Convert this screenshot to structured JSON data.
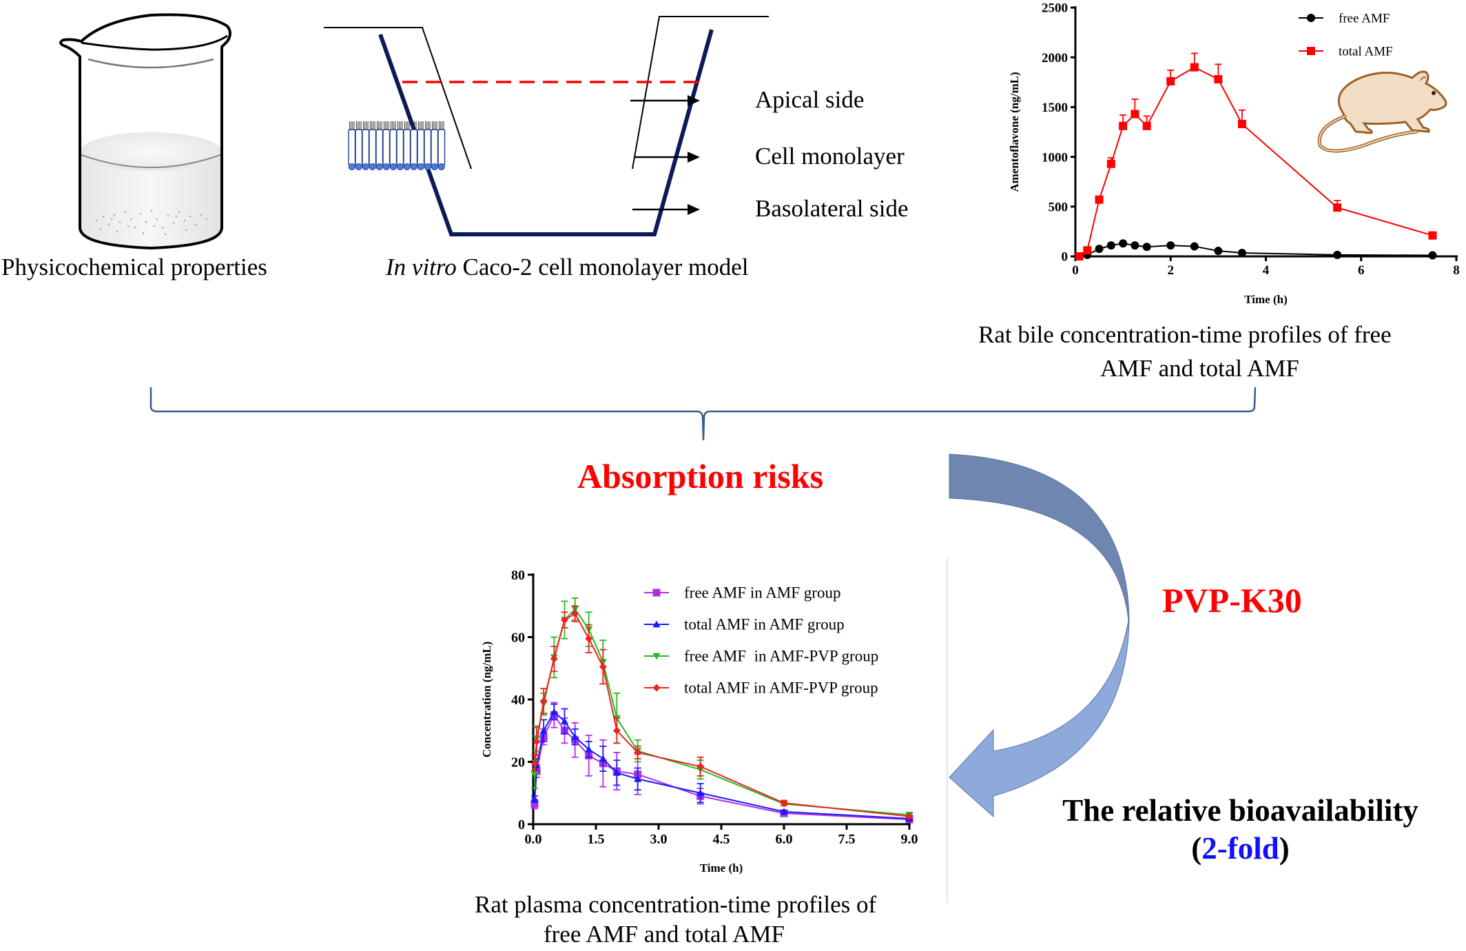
{
  "captions": {
    "beaker": "Physicochemical properties",
    "caco2_italic": "In vitro",
    "caco2_rest": " Caco-2 cell monolayer model",
    "bile_line1": "Rat bile concentration-time profiles of free",
    "bile_line2": "AMF and total AMF",
    "plasma_line1": "Rat plasma concentration-time profiles of",
    "plasma_line2": "free AMF and total AMF"
  },
  "caco2_labels": {
    "apical": "Apical side",
    "monolayer": "Cell monolayer",
    "basolateral": "Basolateral side"
  },
  "headline": {
    "absorption": "Absorption risks",
    "pvp": "PVP-K30",
    "bioavailability": "The relative bioavailability",
    "fold_open": "(",
    "fold_value": "2-fold",
    "fold_close": ")"
  },
  "colors": {
    "red": "#ff0000",
    "blue_text": "#1010ff",
    "arrow_dark": "#6e86b0",
    "arrow_light": "#8eaadc",
    "brace": "#3a5a8c",
    "navy": "#0d1a5a"
  },
  "chart_data": [
    {
      "type": "line",
      "title": "",
      "xlabel": "Time (h)",
      "ylabel": "Amentoflavone (ng/mL)",
      "xlim": [
        0,
        8
      ],
      "ylim": [
        0,
        2500
      ],
      "xticks": [
        0,
        2,
        4,
        6,
        8
      ],
      "yticks": [
        0,
        500,
        1000,
        1500,
        2000,
        2500
      ],
      "legend_position": "top-right",
      "x": [
        0.083,
        0.25,
        0.5,
        0.75,
        1,
        1.25,
        1.5,
        2,
        2.5,
        3,
        3.5,
        5.5,
        7.5
      ],
      "series": [
        {
          "name": "free AMF",
          "color": "#000000",
          "marker": "circle",
          "values": [
            0,
            15,
            75,
            110,
            130,
            110,
            95,
            110,
            100,
            55,
            35,
            15,
            10
          ],
          "errors": [
            0,
            0,
            0,
            0,
            0,
            0,
            0,
            0,
            0,
            0,
            0,
            0,
            0
          ]
        },
        {
          "name": "total AMF",
          "color": "#ff0000",
          "marker": "square",
          "values": [
            0,
            60,
            570,
            930,
            1310,
            1430,
            1310,
            1760,
            1900,
            1780,
            1330,
            490,
            210
          ],
          "errors": [
            0,
            0,
            0,
            60,
            110,
            150,
            100,
            110,
            140,
            150,
            140,
            70,
            0
          ]
        }
      ]
    },
    {
      "type": "line",
      "title": "",
      "xlabel": "Time (h)",
      "ylabel": "Concentration (ng/mL)",
      "xlim": [
        0,
        9
      ],
      "ylim": [
        0,
        80
      ],
      "xticks": [
        "0.0",
        "1.5",
        "3.0",
        "4.5",
        "6.0",
        "7.5",
        "9.0"
      ],
      "yticks": [
        0,
        20,
        40,
        60,
        80
      ],
      "legend_position": "top-right",
      "x": [
        0.033,
        0.083,
        0.25,
        0.5,
        0.75,
        1,
        1.33,
        1.67,
        2,
        2.5,
        4,
        6,
        9
      ],
      "series": [
        {
          "name": "free AMF in AMF group",
          "color": "#b030e0",
          "marker": "square",
          "values": [
            6.5,
            17,
            28,
            35,
            30,
            27,
            22,
            19.5,
            17,
            16,
            9,
            3.5,
            1.5
          ],
          "errors": [
            1.5,
            2,
            2.5,
            4,
            4,
            5.5,
            6.5,
            7.5,
            6,
            6.5,
            2.5,
            0.5,
            0.3
          ]
        },
        {
          "name": "total AMF in AMF group",
          "color": "#1a1aff",
          "marker": "triangle-up",
          "values": [
            8,
            19,
            30,
            36,
            33,
            28,
            24,
            21,
            16.5,
            14.5,
            10,
            4,
            1.8
          ],
          "errors": [
            1,
            2,
            3.5,
            2.5,
            4,
            2.5,
            2.5,
            4,
            4,
            3.5,
            3,
            0.5,
            0.3
          ]
        },
        {
          "name": "free AMF  in AMF-PVP group",
          "color": "#22bb22",
          "marker": "triangle-down",
          "values": [
            16,
            27.5,
            38.5,
            53.5,
            65.5,
            69,
            62.5,
            52,
            34,
            23.5,
            17.5,
            6.5,
            3
          ],
          "errors": [
            4.5,
            4,
            3.5,
            6.5,
            6,
            3.5,
            5.5,
            7,
            8,
            3.5,
            3,
            0.5,
            0.5
          ]
        },
        {
          "name": "total AMF in AMF-PVP group",
          "color": "#ee2222",
          "marker": "diamond",
          "values": [
            19.5,
            26.5,
            39.5,
            53,
            65.5,
            67.5,
            59.5,
            50.5,
            30,
            23,
            18.5,
            6.8,
            2.5
          ],
          "errors": [
            2.5,
            4.5,
            4,
            4,
            2.5,
            2.5,
            4.5,
            5.5,
            4,
            2,
            3,
            0.8,
            0.4
          ]
        }
      ]
    }
  ]
}
